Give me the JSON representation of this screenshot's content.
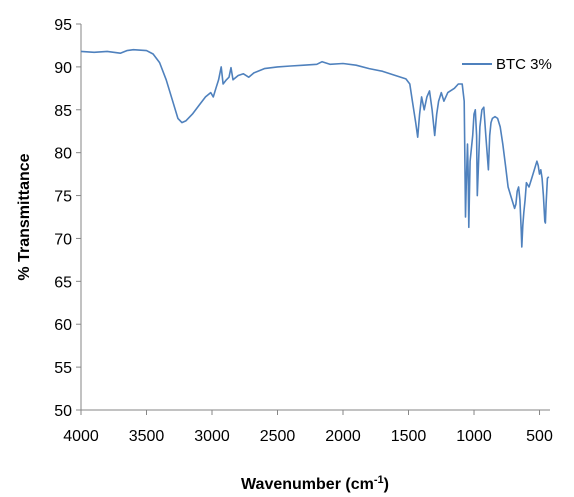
{
  "chart_data": {
    "type": "line",
    "title": "",
    "xlabel": "Wavenumber (cm",
    "xlabel_sup": "-1",
    "xlabel_close": ")",
    "ylabel": "% Transmittance",
    "xlim": [
      4000,
      420
    ],
    "ylim": [
      50,
      95
    ],
    "x_reversed": true,
    "x_ticks": [
      "4000",
      "3500",
      "3000",
      "2500",
      "2000",
      "1500",
      "1000",
      "500"
    ],
    "y_ticks": [
      "50",
      "55",
      "60",
      "65",
      "70",
      "75",
      "80",
      "85",
      "90",
      "95"
    ],
    "grid": false,
    "legend_position": "top-right",
    "series": [
      {
        "name": "BTC 3%",
        "color": "#4f81bd",
        "points": [
          [
            4000,
            91.8
          ],
          [
            3900,
            91.7
          ],
          [
            3800,
            91.8
          ],
          [
            3700,
            91.6
          ],
          [
            3650,
            91.9
          ],
          [
            3600,
            92.0
          ],
          [
            3500,
            91.9
          ],
          [
            3450,
            91.5
          ],
          [
            3400,
            90.5
          ],
          [
            3350,
            88.5
          ],
          [
            3300,
            86.0
          ],
          [
            3260,
            84.0
          ],
          [
            3230,
            83.5
          ],
          [
            3200,
            83.7
          ],
          [
            3150,
            84.5
          ],
          [
            3100,
            85.5
          ],
          [
            3050,
            86.5
          ],
          [
            3010,
            87.0
          ],
          [
            2990,
            86.5
          ],
          [
            2970,
            87.5
          ],
          [
            2950,
            88.5
          ],
          [
            2930,
            90.0
          ],
          [
            2915,
            88.0
          ],
          [
            2890,
            88.5
          ],
          [
            2870,
            88.8
          ],
          [
            2855,
            89.9
          ],
          [
            2840,
            88.5
          ],
          [
            2800,
            89.0
          ],
          [
            2760,
            89.2
          ],
          [
            2720,
            88.8
          ],
          [
            2680,
            89.3
          ],
          [
            2600,
            89.8
          ],
          [
            2500,
            90.0
          ],
          [
            2400,
            90.1
          ],
          [
            2300,
            90.2
          ],
          [
            2200,
            90.3
          ],
          [
            2160,
            90.6
          ],
          [
            2100,
            90.3
          ],
          [
            2000,
            90.4
          ],
          [
            1900,
            90.2
          ],
          [
            1800,
            89.8
          ],
          [
            1700,
            89.5
          ],
          [
            1600,
            89.0
          ],
          [
            1520,
            88.6
          ],
          [
            1490,
            88.0
          ],
          [
            1470,
            86.0
          ],
          [
            1445,
            83.5
          ],
          [
            1430,
            81.8
          ],
          [
            1415,
            84.5
          ],
          [
            1400,
            86.5
          ],
          [
            1380,
            85.0
          ],
          [
            1360,
            86.5
          ],
          [
            1340,
            87.2
          ],
          [
            1320,
            85.0
          ],
          [
            1300,
            82.0
          ],
          [
            1285,
            84.5
          ],
          [
            1270,
            86.0
          ],
          [
            1250,
            87.0
          ],
          [
            1230,
            86.0
          ],
          [
            1200,
            87.0
          ],
          [
            1150,
            87.5
          ],
          [
            1120,
            88.0
          ],
          [
            1090,
            88.0
          ],
          [
            1075,
            86.0
          ],
          [
            1070,
            80.0
          ],
          [
            1065,
            72.5
          ],
          [
            1060,
            76.0
          ],
          [
            1050,
            81.0
          ],
          [
            1045,
            78.0
          ],
          [
            1040,
            71.3
          ],
          [
            1035,
            75.0
          ],
          [
            1030,
            79.0
          ],
          [
            1010,
            82.0
          ],
          [
            1000,
            84.5
          ],
          [
            990,
            85.0
          ],
          [
            980,
            82.0
          ],
          [
            975,
            75.0
          ],
          [
            965,
            79.0
          ],
          [
            955,
            83.0
          ],
          [
            940,
            85.0
          ],
          [
            925,
            85.3
          ],
          [
            910,
            82.0
          ],
          [
            900,
            80.0
          ],
          [
            890,
            78.0
          ],
          [
            880,
            82.0
          ],
          [
            870,
            83.5
          ],
          [
            860,
            84.0
          ],
          [
            840,
            84.2
          ],
          [
            820,
            84.0
          ],
          [
            800,
            83.0
          ],
          [
            780,
            81.0
          ],
          [
            760,
            78.5
          ],
          [
            740,
            76.0
          ],
          [
            720,
            75.0
          ],
          [
            700,
            74.0
          ],
          [
            690,
            73.5
          ],
          [
            680,
            74.0
          ],
          [
            670,
            75.5
          ],
          [
            660,
            76.0
          ],
          [
            650,
            74.5
          ],
          [
            640,
            71.0
          ],
          [
            635,
            69.0
          ],
          [
            628,
            71.5
          ],
          [
            620,
            73.0
          ],
          [
            610,
            74.5
          ],
          [
            600,
            76.5
          ],
          [
            580,
            76.0
          ],
          [
            560,
            77.0
          ],
          [
            540,
            78.0
          ],
          [
            520,
            79.0
          ],
          [
            510,
            78.5
          ],
          [
            500,
            77.5
          ],
          [
            490,
            78.0
          ],
          [
            480,
            77.0
          ],
          [
            470,
            75.0
          ],
          [
            460,
            72.0
          ],
          [
            455,
            71.8
          ],
          [
            450,
            74.0
          ],
          [
            440,
            77.0
          ],
          [
            430,
            77.2
          ]
        ]
      }
    ]
  }
}
